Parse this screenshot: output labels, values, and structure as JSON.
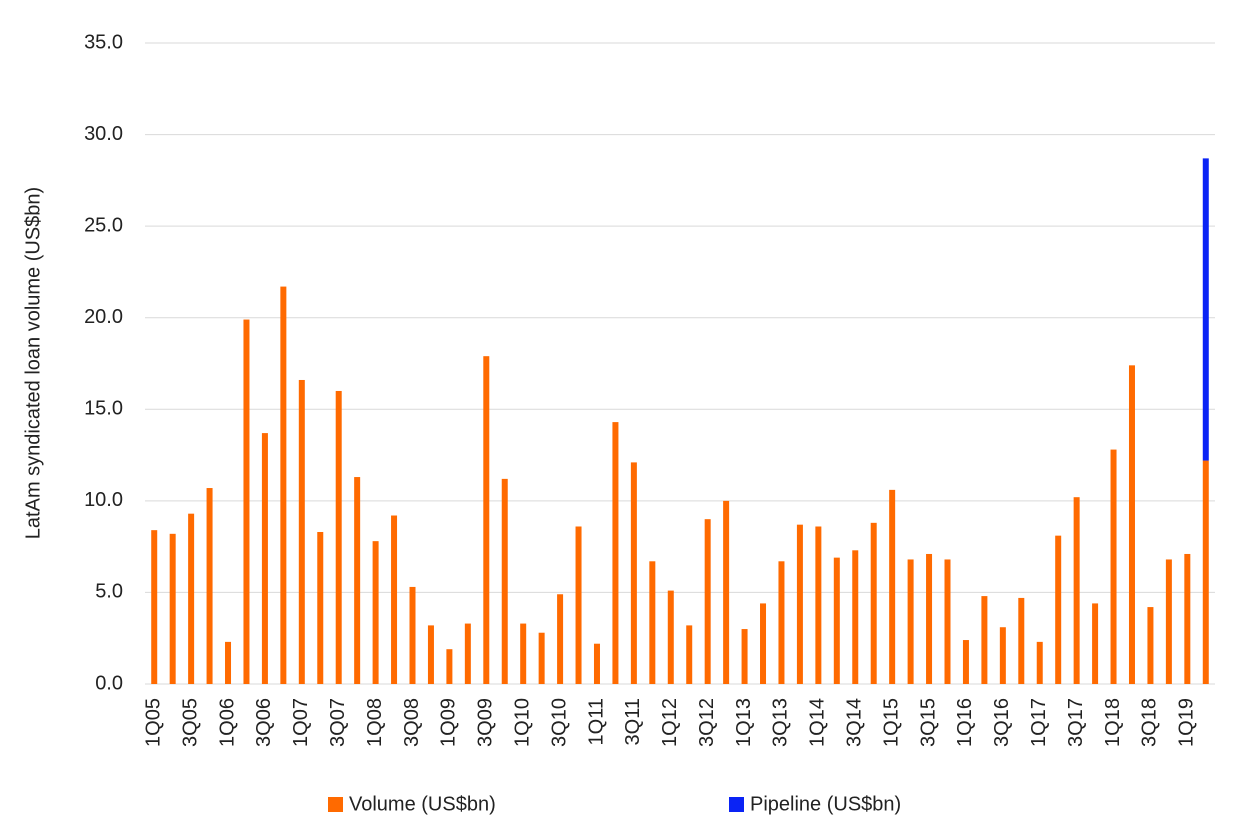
{
  "chart_data": {
    "type": "stacked_bar",
    "y_label": "LatAm syndicated loan volume (US$bn)",
    "categories": [
      "1Q05",
      null,
      "3Q05",
      null,
      "1Q06",
      null,
      "3Q06",
      null,
      "1Q07",
      null,
      "3Q07",
      null,
      "1Q08",
      null,
      "3Q08",
      null,
      "1Q09",
      null,
      "3Q09",
      null,
      "1Q10",
      null,
      "3Q10",
      null,
      "1Q11",
      null,
      "3Q11",
      null,
      "1Q12",
      null,
      "3Q12",
      null,
      "1Q13",
      null,
      "3Q13",
      null,
      "1Q14",
      null,
      "3Q14",
      null,
      "1Q15",
      null,
      "3Q15",
      null,
      "1Q16",
      null,
      "3Q16",
      null,
      "1Q17",
      null,
      "3Q17",
      null,
      "1Q18",
      null,
      "3Q18",
      null,
      "1Q19",
      null
    ],
    "series": [
      {
        "name": "Volume (US$bn)",
        "color": "#ff6a00",
        "values": [
          8.4,
          8.2,
          9.3,
          10.7,
          2.3,
          19.9,
          13.7,
          21.7,
          16.6,
          8.3,
          16.0,
          11.3,
          7.8,
          9.2,
          5.3,
          3.2,
          1.9,
          3.3,
          17.9,
          11.2,
          3.3,
          2.8,
          4.9,
          8.6,
          2.2,
          14.3,
          12.1,
          6.7,
          5.1,
          3.2,
          9.0,
          10.0,
          3.0,
          4.4,
          6.7,
          8.7,
          8.6,
          6.9,
          7.3,
          8.8,
          10.6,
          6.8,
          7.1,
          6.8,
          2.4,
          4.8,
          3.1,
          4.7,
          2.3,
          8.1,
          10.2,
          4.4,
          12.8,
          17.4,
          4.2,
          6.8,
          7.1,
          12.2
        ]
      },
      {
        "name": "Pipeline (US$bn)",
        "color": "#0a23f5",
        "values": [
          null,
          null,
          null,
          null,
          null,
          null,
          null,
          null,
          null,
          null,
          null,
          null,
          null,
          null,
          null,
          null,
          null,
          null,
          null,
          null,
          null,
          null,
          null,
          null,
          null,
          null,
          null,
          null,
          null,
          null,
          null,
          null,
          null,
          null,
          null,
          null,
          null,
          null,
          null,
          null,
          null,
          null,
          null,
          null,
          null,
          null,
          null,
          null,
          null,
          null,
          null,
          null,
          null,
          null,
          null,
          null,
          null,
          16.5
        ]
      }
    ],
    "ylim": [
      0,
      35
    ],
    "yticks": [
      {
        "value": 0,
        "label": "0.0"
      },
      {
        "value": 5,
        "label": "5.0"
      },
      {
        "value": 10,
        "label": "10.0"
      },
      {
        "value": 15,
        "label": "15.0"
      },
      {
        "value": 20,
        "label": "20.0"
      },
      {
        "value": 25,
        "label": "25.0"
      },
      {
        "value": 30,
        "label": "30.0"
      },
      {
        "value": 35,
        "label": "35.0"
      }
    ],
    "grid": true,
    "legend": "bottom"
  }
}
